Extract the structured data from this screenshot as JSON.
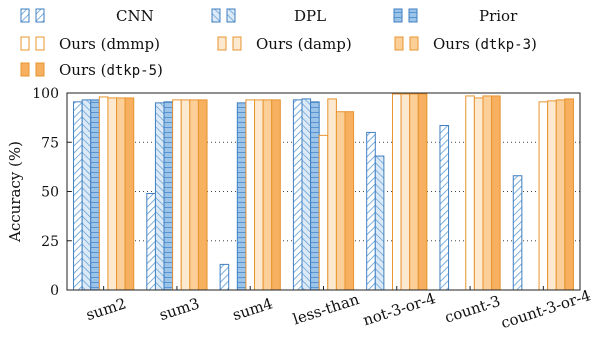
{
  "chart_data": {
    "type": "bar",
    "title": "",
    "xlabel": "",
    "ylabel": "Accuracy (%)",
    "ylim": [
      0,
      100
    ],
    "yticks": [
      "0",
      "25",
      "50",
      "75",
      "100"
    ],
    "ytick_values": [
      0,
      25,
      50,
      75,
      100
    ],
    "grid": "horizontal-dotted",
    "legend_position": "top",
    "categories": [
      "sum2",
      "sum3",
      "sum4",
      "less-than",
      "not-3-or-4",
      "count-3",
      "count-3-or-4"
    ],
    "series": [
      {
        "name": "CNN",
        "fill": "hatch",
        "color": "#5b9bd5",
        "values": [
          95.5,
          49.0,
          13.0,
          96.5,
          80.0,
          83.5,
          58.0
        ]
      },
      {
        "name": "DPL",
        "fill": "hatch-light",
        "color": "#5b9bd5",
        "values": [
          96.5,
          95.0,
          null,
          97.0,
          68.0,
          null,
          null
        ]
      },
      {
        "name": "Prior",
        "fill": "grid",
        "color": "#5b9bd5",
        "values": [
          96.5,
          95.5,
          95.0,
          95.5,
          null,
          null,
          null
        ]
      },
      {
        "name": "Ours (dmmp)",
        "fill": "white",
        "color": "#f0a04b",
        "values": [
          98.0,
          96.5,
          96.5,
          78.5,
          99.5,
          98.5,
          95.5
        ]
      },
      {
        "name": "Ours (damp)",
        "fill": "light",
        "color": "#f0a04b",
        "values": [
          97.5,
          96.5,
          96.5,
          97.0,
          99.5,
          97.5,
          96.0
        ]
      },
      {
        "name": "Ours (dtkp-3)",
        "fill": "medium",
        "color": "#f0a04b",
        "values": [
          97.5,
          96.5,
          96.5,
          90.5,
          99.5,
          98.5,
          96.5
        ]
      },
      {
        "name": "Ours (dtkp-5)",
        "fill": "dark",
        "color": "#f0a04b",
        "values": [
          97.5,
          96.5,
          96.5,
          90.5,
          99.5,
          98.5,
          97.0
        ]
      }
    ]
  }
}
